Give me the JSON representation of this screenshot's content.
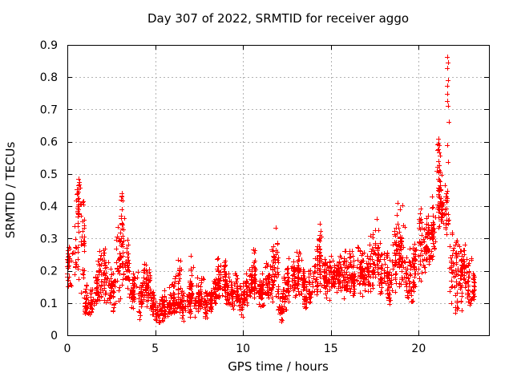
{
  "chart_data": {
    "type": "scatter",
    "title": "Day 307 of 2022, SRMTID for receiver aggo",
    "xlabel": "GPS time / hours",
    "ylabel": "SRMTID / TECUs",
    "xlim": [
      0,
      24
    ],
    "ylim": [
      0,
      0.9
    ],
    "xticks": [
      0,
      5,
      10,
      15,
      20
    ],
    "xticklabels": [
      "0",
      "5",
      "10",
      "15",
      "20"
    ],
    "yticks": [
      0,
      0.1,
      0.2,
      0.3,
      0.4,
      0.5,
      0.6,
      0.7,
      0.8,
      0.9
    ],
    "yticklabels": [
      "0",
      "0.1",
      "0.2",
      "0.3",
      "0.4",
      "0.5",
      "0.6",
      "0.7",
      "0.8",
      "0.9"
    ],
    "grid": true,
    "legend": "none",
    "marker": {
      "shape": "plus",
      "color": "#ff0000",
      "size": 7
    },
    "grid_color": "#b3b3b3",
    "axis_color": "#000000",
    "background_color": "#ffffff",
    "seed": 3072022,
    "bands_format": [
      "t_start_hours",
      "t_end_hours",
      "n_points",
      "value_min",
      "value_max",
      "value_mode"
    ],
    "bands": [
      [
        0.0,
        0.25,
        26,
        0.13,
        0.31,
        0.22
      ],
      [
        0.25,
        0.5,
        12,
        0.15,
        0.35,
        0.25
      ],
      [
        0.5,
        0.75,
        34,
        0.15,
        0.485,
        0.42
      ],
      [
        0.75,
        1.0,
        30,
        0.08,
        0.45,
        0.28
      ],
      [
        1.0,
        1.25,
        28,
        0.05,
        0.18,
        0.1
      ],
      [
        1.25,
        1.5,
        26,
        0.05,
        0.18,
        0.1
      ],
      [
        1.5,
        1.75,
        26,
        0.07,
        0.22,
        0.13
      ],
      [
        1.75,
        2.0,
        30,
        0.08,
        0.28,
        0.17
      ],
      [
        2.0,
        2.25,
        30,
        0.1,
        0.3,
        0.2
      ],
      [
        2.25,
        2.5,
        24,
        0.08,
        0.25,
        0.15
      ],
      [
        2.5,
        2.75,
        22,
        0.07,
        0.2,
        0.12
      ],
      [
        2.75,
        3.0,
        26,
        0.1,
        0.35,
        0.2
      ],
      [
        3.0,
        3.25,
        34,
        0.12,
        0.44,
        0.3
      ],
      [
        3.25,
        3.5,
        30,
        0.12,
        0.35,
        0.2
      ],
      [
        3.5,
        3.75,
        26,
        0.08,
        0.2,
        0.13
      ],
      [
        3.75,
        4.0,
        26,
        0.08,
        0.22,
        0.14
      ],
      [
        4.0,
        4.25,
        26,
        0.04,
        0.18,
        0.11
      ],
      [
        4.25,
        4.5,
        30,
        0.08,
        0.25,
        0.15
      ],
      [
        4.5,
        4.75,
        26,
        0.08,
        0.22,
        0.14
      ],
      [
        4.75,
        5.0,
        26,
        0.05,
        0.15,
        0.1
      ],
      [
        5.0,
        5.25,
        26,
        0.03,
        0.12,
        0.07
      ],
      [
        5.25,
        5.5,
        26,
        0.03,
        0.13,
        0.08
      ],
      [
        5.5,
        5.75,
        26,
        0.04,
        0.15,
        0.09
      ],
      [
        5.75,
        6.0,
        26,
        0.05,
        0.17,
        0.1
      ],
      [
        6.0,
        6.25,
        26,
        0.05,
        0.2,
        0.1
      ],
      [
        6.25,
        6.5,
        30,
        0.05,
        0.27,
        0.12
      ],
      [
        6.5,
        6.75,
        26,
        0.03,
        0.15,
        0.09
      ],
      [
        6.75,
        7.0,
        26,
        0.05,
        0.18,
        0.1
      ],
      [
        7.0,
        7.25,
        30,
        0.06,
        0.26,
        0.12
      ],
      [
        7.25,
        7.5,
        26,
        0.05,
        0.18,
        0.1
      ],
      [
        7.5,
        7.75,
        26,
        0.06,
        0.2,
        0.11
      ],
      [
        7.75,
        8.0,
        26,
        0.04,
        0.15,
        0.09
      ],
      [
        8.0,
        8.25,
        26,
        0.06,
        0.16,
        0.1
      ],
      [
        8.25,
        8.5,
        26,
        0.08,
        0.2,
        0.13
      ],
      [
        8.5,
        8.75,
        30,
        0.1,
        0.26,
        0.17
      ],
      [
        8.75,
        9.0,
        28,
        0.1,
        0.24,
        0.16
      ],
      [
        9.0,
        9.25,
        26,
        0.08,
        0.21,
        0.13
      ],
      [
        9.25,
        9.5,
        26,
        0.08,
        0.18,
        0.12
      ],
      [
        9.5,
        9.75,
        26,
        0.07,
        0.2,
        0.12
      ],
      [
        9.75,
        10.0,
        26,
        0.05,
        0.18,
        0.1
      ],
      [
        10.0,
        10.25,
        26,
        0.08,
        0.2,
        0.13
      ],
      [
        10.25,
        10.5,
        28,
        0.1,
        0.22,
        0.15
      ],
      [
        10.5,
        10.75,
        30,
        0.1,
        0.27,
        0.16
      ],
      [
        10.75,
        11.0,
        26,
        0.08,
        0.2,
        0.13
      ],
      [
        11.0,
        11.25,
        26,
        0.08,
        0.2,
        0.13
      ],
      [
        11.25,
        11.5,
        28,
        0.1,
        0.25,
        0.15
      ],
      [
        11.5,
        11.75,
        28,
        0.1,
        0.3,
        0.17
      ],
      [
        11.75,
        12.0,
        30,
        0.1,
        0.33,
        0.18
      ],
      [
        12.0,
        12.25,
        26,
        0.03,
        0.15,
        0.08
      ],
      [
        12.25,
        12.5,
        26,
        0.06,
        0.2,
        0.12
      ],
      [
        12.5,
        12.75,
        28,
        0.1,
        0.25,
        0.16
      ],
      [
        12.75,
        13.0,
        28,
        0.1,
        0.27,
        0.17
      ],
      [
        13.0,
        13.25,
        30,
        0.12,
        0.29,
        0.18
      ],
      [
        13.25,
        13.5,
        26,
        0.1,
        0.24,
        0.16
      ],
      [
        13.5,
        13.75,
        26,
        0.06,
        0.18,
        0.11
      ],
      [
        13.75,
        14.0,
        26,
        0.08,
        0.22,
        0.14
      ],
      [
        14.0,
        14.25,
        28,
        0.12,
        0.3,
        0.18
      ],
      [
        14.25,
        14.5,
        30,
        0.13,
        0.35,
        0.2
      ],
      [
        14.5,
        14.75,
        26,
        0.12,
        0.26,
        0.18
      ],
      [
        14.75,
        15.0,
        26,
        0.1,
        0.24,
        0.16
      ],
      [
        15.0,
        15.25,
        26,
        0.12,
        0.26,
        0.18
      ],
      [
        15.25,
        15.5,
        26,
        0.12,
        0.25,
        0.18
      ],
      [
        15.5,
        15.75,
        26,
        0.1,
        0.28,
        0.17
      ],
      [
        15.75,
        16.0,
        28,
        0.12,
        0.3,
        0.19
      ],
      [
        16.0,
        16.25,
        26,
        0.12,
        0.28,
        0.19
      ],
      [
        16.25,
        16.5,
        26,
        0.1,
        0.26,
        0.17
      ],
      [
        16.5,
        16.75,
        26,
        0.12,
        0.3,
        0.19
      ],
      [
        16.75,
        17.0,
        26,
        0.1,
        0.28,
        0.18
      ],
      [
        17.0,
        17.25,
        26,
        0.12,
        0.3,
        0.19
      ],
      [
        17.25,
        17.5,
        28,
        0.14,
        0.36,
        0.2
      ],
      [
        17.5,
        17.75,
        28,
        0.12,
        0.38,
        0.2
      ],
      [
        17.75,
        18.0,
        26,
        0.1,
        0.33,
        0.18
      ],
      [
        18.0,
        18.25,
        26,
        0.1,
        0.28,
        0.18
      ],
      [
        18.25,
        18.5,
        26,
        0.07,
        0.25,
        0.15
      ],
      [
        18.5,
        18.75,
        28,
        0.12,
        0.38,
        0.2
      ],
      [
        18.75,
        19.0,
        30,
        0.15,
        0.41,
        0.25
      ],
      [
        19.0,
        19.25,
        26,
        0.12,
        0.4,
        0.22
      ],
      [
        19.25,
        19.5,
        26,
        0.08,
        0.25,
        0.15
      ],
      [
        19.5,
        19.75,
        26,
        0.08,
        0.28,
        0.17
      ],
      [
        19.75,
        20.0,
        26,
        0.12,
        0.3,
        0.2
      ],
      [
        20.0,
        20.25,
        28,
        0.15,
        0.4,
        0.3
      ],
      [
        20.25,
        20.5,
        26,
        0.15,
        0.38,
        0.27
      ],
      [
        20.5,
        20.75,
        26,
        0.2,
        0.38,
        0.28
      ],
      [
        20.75,
        21.0,
        28,
        0.22,
        0.46,
        0.33
      ],
      [
        21.0,
        21.25,
        32,
        0.3,
        0.61,
        0.45
      ],
      [
        21.25,
        21.5,
        28,
        0.3,
        0.5,
        0.4
      ],
      [
        21.5,
        21.75,
        22,
        0.28,
        0.47,
        0.38
      ],
      [
        21.75,
        22.0,
        22,
        0.1,
        0.35,
        0.22
      ],
      [
        22.0,
        22.25,
        28,
        0.05,
        0.33,
        0.2
      ],
      [
        22.25,
        22.5,
        30,
        0.05,
        0.3,
        0.18
      ],
      [
        22.5,
        22.75,
        30,
        0.1,
        0.3,
        0.19
      ],
      [
        22.75,
        23.0,
        28,
        0.08,
        0.25,
        0.16
      ],
      [
        23.0,
        23.2,
        20,
        0.1,
        0.22,
        0.15
      ]
    ],
    "outlier_points": [
      [
        21.62,
        0.862
      ],
      [
        21.66,
        0.845
      ],
      [
        21.64,
        0.828
      ],
      [
        21.68,
        0.79
      ],
      [
        21.63,
        0.772
      ],
      [
        21.65,
        0.748
      ],
      [
        21.64,
        0.726
      ],
      [
        21.66,
        0.71
      ],
      [
        21.7,
        0.662
      ],
      [
        21.12,
        0.608
      ],
      [
        21.08,
        0.592
      ],
      [
        21.18,
        0.588
      ],
      [
        21.64,
        0.588
      ],
      [
        21.1,
        0.575
      ],
      [
        21.15,
        0.566
      ],
      [
        21.2,
        0.556
      ],
      [
        21.68,
        0.538
      ],
      [
        21.06,
        0.522
      ],
      [
        21.22,
        0.508
      ],
      [
        21.3,
        0.498
      ],
      [
        0.66,
        0.485
      ],
      [
        0.7,
        0.476
      ],
      [
        0.68,
        0.468
      ],
      [
        0.72,
        0.458
      ],
      [
        0.64,
        0.452
      ],
      [
        3.08,
        0.44
      ],
      [
        3.12,
        0.43
      ],
      [
        3.06,
        0.42
      ],
      [
        18.82,
        0.41
      ],
      [
        19.05,
        0.402
      ],
      [
        14.35,
        0.345
      ],
      [
        11.85,
        0.332
      ]
    ]
  }
}
